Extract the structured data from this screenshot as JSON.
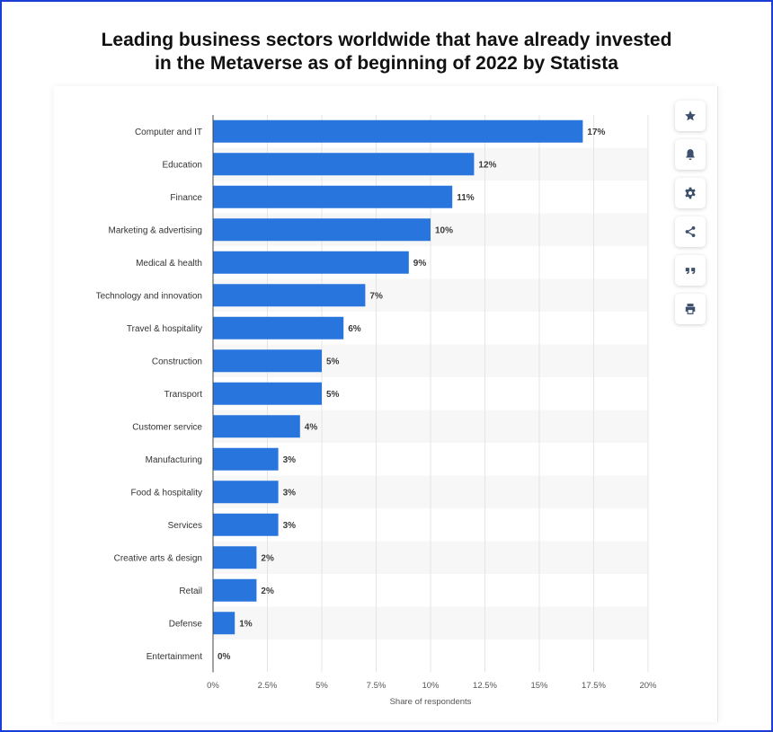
{
  "header": {
    "title_line1": "Leading business sectors worldwide that have already invested",
    "title_line2": "in the Metaverse as of beginning of 2022 by Statista"
  },
  "toolbar": {
    "buttons": [
      {
        "icon": "star-icon"
      },
      {
        "icon": "bell-icon"
      },
      {
        "icon": "gear-icon"
      },
      {
        "icon": "share-icon"
      },
      {
        "icon": "quote-icon"
      },
      {
        "icon": "print-icon"
      }
    ],
    "icon_color": "#3c4f6b"
  },
  "chart_data": {
    "type": "bar",
    "orientation": "horizontal",
    "categories": [
      "Computer and IT",
      "Education",
      "Finance",
      "Marketing & advertising",
      "Medical & health",
      "Technology and innovation",
      "Travel & hospitality",
      "Construction",
      "Transport",
      "Customer service",
      "Manufacturing",
      "Food & hospitality",
      "Services",
      "Creative arts & design",
      "Retail",
      "Defense",
      "Entertainment"
    ],
    "values": [
      17,
      12,
      11,
      10,
      9,
      7,
      6,
      5,
      5,
      4,
      3,
      3,
      3,
      2,
      2,
      1,
      0
    ],
    "value_labels": [
      "17%",
      "12%",
      "11%",
      "10%",
      "9%",
      "7%",
      "6%",
      "5%",
      "5%",
      "4%",
      "3%",
      "3%",
      "3%",
      "2%",
      "2%",
      "1%",
      "0%"
    ],
    "xlabel": "Share of respondents",
    "xlim": [
      0,
      20
    ],
    "x_ticks": [
      0,
      2.5,
      5,
      7.5,
      10,
      12.5,
      15,
      17.5,
      20
    ],
    "x_tick_labels": [
      "0%",
      "2.5%",
      "5%",
      "7.5%",
      "10%",
      "12.5%",
      "15%",
      "17.5%",
      "20%"
    ],
    "bar_color": "#2876dd",
    "grid": true
  }
}
